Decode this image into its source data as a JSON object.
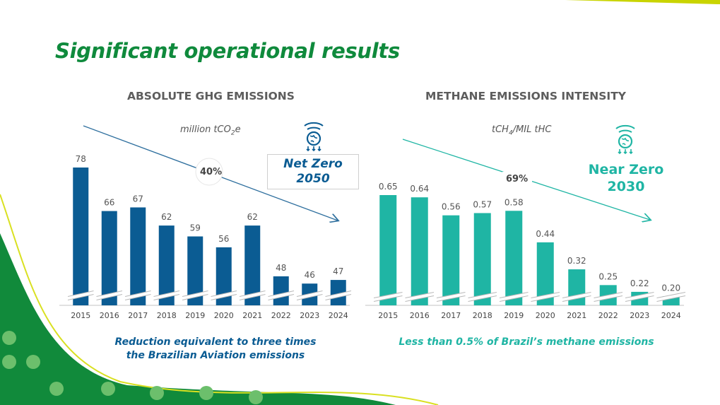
{
  "page": {
    "title": "Significant operational results"
  },
  "colors": {
    "title": "#0f8a3c",
    "ghg_bar": "#0b5c93",
    "methane_bar": "#1fb5a4"
  },
  "ghg": {
    "title": "ABSOLUTE GHG EMISSIONS",
    "unit_main": "million tCO",
    "unit_sub": "2",
    "unit_end": "e",
    "reduction": "40%",
    "target_line1": "Net Zero",
    "target_line2": "2050",
    "icon": "globe-emissions-icon",
    "caption_line1": "Reduction equivalent to three times",
    "caption_line2": "the Brazilian Aviation emissions"
  },
  "methane": {
    "title": "METHANE EMISSIONS INTENSITY",
    "unit_main": "tCH",
    "unit_sub": "4",
    "unit_end": "/MIL tHC",
    "reduction": "69%",
    "target_line1": "Near Zero",
    "target_line2": "2030",
    "icon": "globe-emissions-icon",
    "caption": "Less than 0.5% of Brazil’s methane emissions"
  },
  "chart_data": [
    {
      "type": "bar",
      "title": "ABSOLUTE GHG EMISSIONS",
      "ylabel": "million tCO2e",
      "categories": [
        "2015",
        "2016",
        "2017",
        "2018",
        "2019",
        "2020",
        "2021",
        "2022",
        "2023",
        "2024"
      ],
      "values": [
        78,
        66,
        67,
        62,
        59,
        56,
        62,
        48,
        46,
        47
      ],
      "labels": [
        "78",
        "66",
        "67",
        "62",
        "59",
        "56",
        "62",
        "48",
        "46",
        "47"
      ],
      "axis_break": true,
      "grid": false,
      "color": "#0b5c93"
    },
    {
      "type": "bar",
      "title": "METHANE EMISSIONS INTENSITY",
      "ylabel": "tCH4/MIL tHC",
      "categories": [
        "2015",
        "2016",
        "2017",
        "2018",
        "2019",
        "2020",
        "2021",
        "2022",
        "2023",
        "2024"
      ],
      "values": [
        0.65,
        0.64,
        0.56,
        0.57,
        0.58,
        0.44,
        0.32,
        0.25,
        0.22,
        0.2
      ],
      "labels": [
        "0.65",
        "0.64",
        "0.56",
        "0.57",
        "0.58",
        "0.44",
        "0.32",
        "0.25",
        "0.22",
        "0.20"
      ],
      "axis_break": true,
      "grid": false,
      "color": "#1fb5a4"
    }
  ]
}
